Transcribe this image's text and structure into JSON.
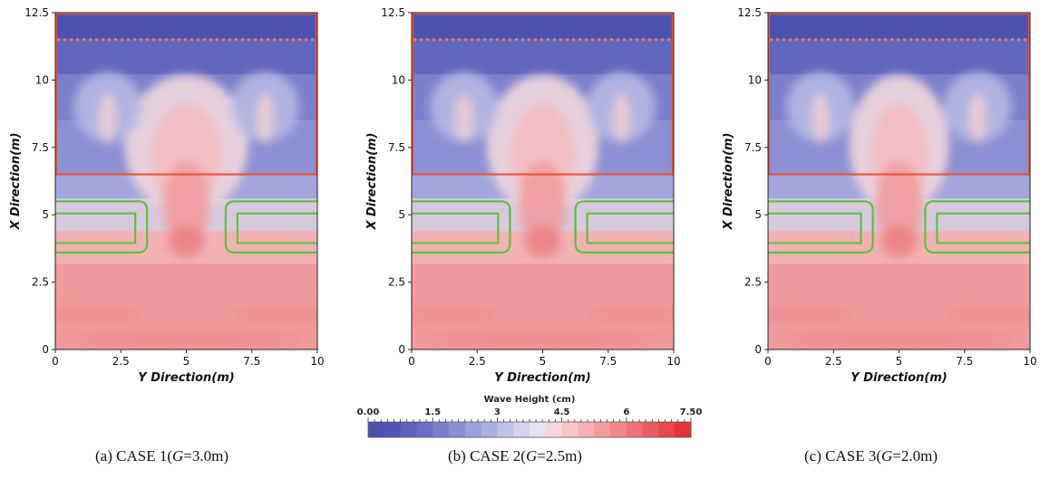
{
  "chart_data": [
    {
      "type": "heatmap",
      "id": "case1",
      "xlabel": "Y Direction(m)",
      "ylabel": "X Direction(m)",
      "xticks": [
        "0",
        "2.5",
        "5",
        "7.5",
        "10"
      ],
      "yticks": [
        "0",
        "2.5",
        "5",
        "7.5",
        "10",
        "12.5"
      ],
      "xlim": [
        0,
        10
      ],
      "ylim": [
        0,
        12.5
      ],
      "gap_m": 3.0,
      "caption": {
        "prefix": "(a)  CASE  1(",
        "var": "G",
        "suffix": "=3.0m)"
      }
    },
    {
      "type": "heatmap",
      "id": "case2",
      "xlabel": "Y Direction(m)",
      "ylabel": "X Direction(m)",
      "xticks": [
        "0",
        "2.5",
        "5",
        "7.5",
        "10"
      ],
      "yticks": [
        "0",
        "2.5",
        "5",
        "7.5",
        "10",
        "12.5"
      ],
      "xlim": [
        0,
        10
      ],
      "ylim": [
        0,
        12.5
      ],
      "gap_m": 2.5,
      "caption": {
        "prefix": "(b)  CASE  2(",
        "var": "G",
        "suffix": "=2.5m)"
      }
    },
    {
      "type": "heatmap",
      "id": "case3",
      "xlabel": "Y Direction(m)",
      "ylabel": "X Direction(m)",
      "xticks": [
        "0",
        "2.5",
        "5",
        "7.5",
        "10"
      ],
      "yticks": [
        "0",
        "2.5",
        "5",
        "7.5",
        "10",
        "12.5"
      ],
      "xlim": [
        0,
        10
      ],
      "ylim": [
        0,
        12.5
      ],
      "gap_m": 2.0,
      "caption": {
        "prefix": "(c)  CASE  3(",
        "var": "G",
        "suffix": "=2.0m)"
      }
    }
  ],
  "colorbar": {
    "title": "Wave Height (cm)",
    "labels": [
      "0.00",
      "1.5",
      "3",
      "4.5",
      "6",
      "7.50"
    ],
    "min": 0,
    "max": 7.5,
    "colors": [
      "#4a50ad",
      "#5257b5",
      "#5c61bc",
      "#6a6fc3",
      "#7a7fca",
      "#8a8ed2",
      "#9ca0da",
      "#adb0e1",
      "#c0c2e8",
      "#d3d4ef",
      "#e5e3ef",
      "#f3d9dc",
      "#f6c6c9",
      "#f5b1b3",
      "#f39c9e",
      "#f1878a",
      "#ee7275",
      "#eb5d61",
      "#e8474d",
      "#e53139"
    ]
  },
  "colors": {
    "structure_outline": "#e8553a",
    "breakwater_outline": "#5ec040",
    "boundary_dotted": "#f07a5a"
  }
}
